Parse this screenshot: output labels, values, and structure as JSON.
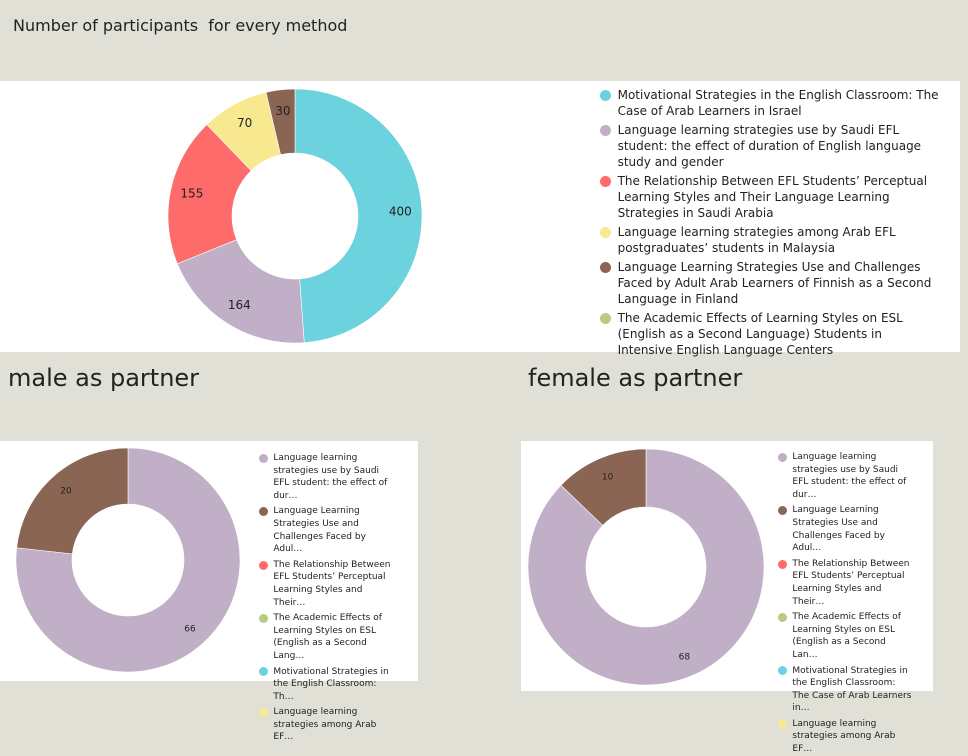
{
  "chart_data": [
    {
      "type": "pie",
      "title": "Number of participants  for every method",
      "categories": [
        "Motivational Strategies in the English Classroom: The Case of Arab Learners in Israel",
        "Language learning strategies use by Saudi EFL student: the effect of duration of English language study and gender",
        "The Relationship Between EFL Students’ Perceptual Learning Styles and Their Language Learning Strategies in Saudi Arabia",
        "Language learning strategies among Arab EFL postgraduates’ students in Malaysia",
        "Language Learning Strategies Use and Challenges Faced by Adult Arab Learners of Finnish as a Second Language in Finland",
        "The Academic Effects of Learning Styles on ESL (English as a Second Language) Students in Intensive English Language Centers"
      ],
      "values": [
        400,
        164,
        155,
        70,
        30,
        0
      ],
      "colors": [
        "#6cd2dd",
        "#c0afc6",
        "#fe6b6b",
        "#f8e88f",
        "#8a6553",
        "#b6cc81"
      ]
    },
    {
      "type": "pie",
      "title": "male as partner",
      "categories": [
        "Language learning strategies use by Saudi EFL student: the effect of dur…",
        "Language Learning Strategies Use and Challenges Faced by Adul…",
        "The Relationship Between EFL Students’ Perceptual Learning Styles and Their…",
        "The Academic Effects of Learning Styles on ESL (English as a Second Lang…",
        "Motivational Strategies in the English Classroom: Th…",
        "Language learning strategies among Arab EF…"
      ],
      "values": [
        66,
        20,
        0,
        0,
        0,
        0
      ],
      "colors": [
        "#c0afc6",
        "#8a6553",
        "#fe6b6b",
        "#b6cc81",
        "#6cd2dd",
        "#f8e88f"
      ]
    },
    {
      "type": "pie",
      "title": "female as partner",
      "categories": [
        "Language learning strategies use by Saudi EFL student: the effect of dur…",
        "Language Learning Strategies Use and Challenges Faced by Adul…",
        "The Relationship Between EFL Students’ Perceptual Learning Styles and Their…",
        "The Academic Effects of Learning Styles on ESL (English as a Second Lan…",
        "Motivational Strategies in the English Classroom: The Case of Arab Learners in…",
        "Language learning strategies among Arab EF…"
      ],
      "values": [
        68,
        10,
        0,
        0,
        0,
        0
      ],
      "colors": [
        "#c0afc6",
        "#8a6553",
        "#fe6b6b",
        "#b6cc81",
        "#6cd2dd",
        "#f8e88f"
      ]
    }
  ]
}
